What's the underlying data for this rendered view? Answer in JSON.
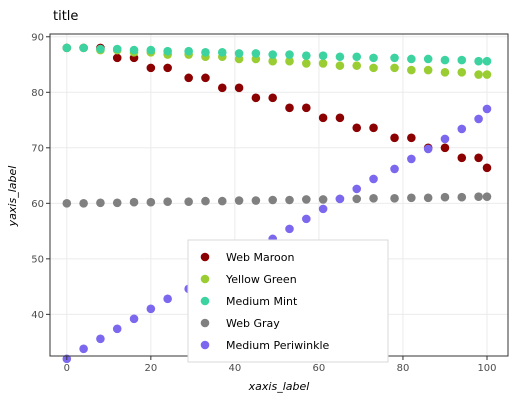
{
  "chart_data": {
    "type": "scatter",
    "title": "title",
    "xlabel": "xaxis_label",
    "ylabel": "yaxis_label",
    "xlim": [
      -4,
      105
    ],
    "ylim": [
      32.5,
      90.5
    ],
    "xticks": [
      0,
      20,
      40,
      60,
      80,
      100
    ],
    "yticks": [
      40,
      50,
      60,
      70,
      80,
      90
    ],
    "grid": true,
    "legend_position": "bottom-center",
    "x": [
      0,
      4,
      8,
      12,
      16,
      20,
      24,
      29,
      33,
      37,
      41,
      45,
      49,
      53,
      57,
      61,
      65,
      69,
      73,
      78,
      82,
      86,
      90,
      94,
      98,
      100
    ],
    "series": [
      {
        "name": "Web Maroon",
        "color": "#8b0000",
        "values": [
          88.0,
          88.0,
          88.0,
          86.2,
          86.2,
          84.4,
          84.4,
          82.6,
          82.6,
          80.8,
          80.8,
          79.0,
          79.0,
          77.2,
          77.2,
          75.4,
          75.4,
          73.6,
          73.6,
          71.8,
          71.8,
          70.0,
          70.0,
          68.2,
          68.2,
          66.4
        ]
      },
      {
        "name": "Yellow Green",
        "color": "#9acd32",
        "values": [
          88.0,
          88.0,
          87.6,
          87.6,
          87.2,
          87.2,
          86.8,
          86.8,
          86.4,
          86.4,
          86.0,
          86.0,
          85.6,
          85.6,
          85.2,
          85.2,
          84.8,
          84.8,
          84.4,
          84.4,
          84.0,
          84.0,
          83.6,
          83.6,
          83.2,
          83.2
        ]
      },
      {
        "name": "Medium Mint",
        "color": "#3cd3a0",
        "values": [
          88.0,
          88.0,
          87.8,
          87.8,
          87.6,
          87.6,
          87.4,
          87.4,
          87.2,
          87.2,
          87.0,
          87.0,
          86.8,
          86.8,
          86.6,
          86.6,
          86.4,
          86.4,
          86.2,
          86.2,
          86.0,
          86.0,
          85.8,
          85.8,
          85.6,
          85.6
        ]
      },
      {
        "name": "Web Gray",
        "color": "#808080",
        "values": [
          60.0,
          60.0,
          60.1,
          60.1,
          60.2,
          60.2,
          60.3,
          60.3,
          60.4,
          60.4,
          60.5,
          60.5,
          60.6,
          60.6,
          60.7,
          60.7,
          60.8,
          60.8,
          60.9,
          60.9,
          61.0,
          61.0,
          61.1,
          61.1,
          61.2,
          61.2
        ]
      },
      {
        "name": "Medium Periwinkle",
        "color": "#7b68ee",
        "values": [
          32.0,
          33.8,
          35.6,
          37.4,
          39.2,
          41.0,
          42.8,
          44.6,
          46.4,
          48.2,
          50.0,
          51.8,
          53.6,
          55.4,
          57.2,
          59.0,
          60.8,
          62.6,
          64.4,
          66.2,
          68.0,
          69.8,
          71.6,
          73.4,
          75.2,
          77.0
        ]
      }
    ]
  }
}
